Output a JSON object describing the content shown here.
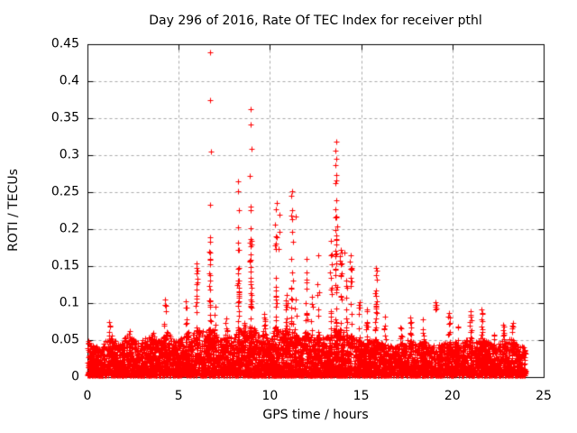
{
  "title": "Day 296 of 2016, Rate Of TEC Index for receiver pthl",
  "x_axis_label": "GPS time / hours",
  "y_axis_label": "ROTI / TECUs",
  "colors": {
    "marker": "#ff0000",
    "grid": "#a8a8a8",
    "frame": "#000000",
    "background": "#ffffff",
    "text": "#000000"
  },
  "chart_data": {
    "type": "scatter",
    "title": "Day 296 of 2016, Rate Of TEC Index for receiver pthl",
    "xlabel": "GPS time / hours",
    "ylabel": "ROTI / TECUs",
    "xlim": [
      0,
      25
    ],
    "ylim": [
      0,
      0.45
    ],
    "xticks": {
      "values": [
        0,
        5,
        10,
        15,
        20,
        25
      ],
      "labels": [
        "0",
        "5",
        "10",
        "15",
        "20",
        "25"
      ]
    },
    "yticks": {
      "values": [
        0,
        0.05,
        0.1,
        0.15,
        0.2,
        0.25,
        0.3,
        0.35,
        0.4,
        0.45
      ],
      "labels": [
        "0",
        "0.05",
        "0.1",
        "0.15",
        "0.2",
        "0.25",
        "0.3",
        "0.35",
        "0.4",
        "0.45"
      ]
    },
    "grid": {
      "style": "dashed",
      "color": "#a8a8a8",
      "on": true
    },
    "legend": {
      "visible": false
    },
    "marker": {
      "shape": "plus",
      "color": "#ff0000",
      "size": 7
    },
    "data_time_range_hours": [
      0,
      24
    ],
    "baseline_band": {
      "n": 6500,
      "v_min": 0.002,
      "envelope": [
        [
          0,
          0.05
        ],
        [
          0.3,
          0.042
        ],
        [
          0.7,
          0.038
        ],
        [
          1.0,
          0.048
        ],
        [
          1.3,
          0.055
        ],
        [
          1.7,
          0.042
        ],
        [
          2.1,
          0.055
        ],
        [
          2.4,
          0.052
        ],
        [
          2.8,
          0.045
        ],
        [
          3.2,
          0.052
        ],
        [
          3.6,
          0.055
        ],
        [
          4.0,
          0.048
        ],
        [
          4.3,
          0.062
        ],
        [
          4.7,
          0.05
        ],
        [
          5.0,
          0.048
        ],
        [
          5.4,
          0.06
        ],
        [
          5.8,
          0.06
        ],
        [
          6.1,
          0.062
        ],
        [
          6.5,
          0.06
        ],
        [
          6.8,
          0.065
        ],
        [
          7.1,
          0.055
        ],
        [
          7.4,
          0.05
        ],
        [
          7.7,
          0.055
        ],
        [
          8.0,
          0.05
        ],
        [
          8.3,
          0.065
        ],
        [
          8.7,
          0.06
        ],
        [
          9.0,
          0.07
        ],
        [
          9.4,
          0.055
        ],
        [
          9.7,
          0.06
        ],
        [
          10.0,
          0.05
        ],
        [
          10.3,
          0.065
        ],
        [
          10.7,
          0.06
        ],
        [
          11.0,
          0.065
        ],
        [
          11.3,
          0.06
        ],
        [
          11.6,
          0.05
        ],
        [
          12.0,
          0.06
        ],
        [
          12.4,
          0.05
        ],
        [
          12.7,
          0.055
        ],
        [
          13.0,
          0.05
        ],
        [
          13.4,
          0.06
        ],
        [
          13.7,
          0.065
        ],
        [
          14.0,
          0.06
        ],
        [
          14.4,
          0.055
        ],
        [
          14.8,
          0.05
        ],
        [
          15.2,
          0.045
        ],
        [
          15.6,
          0.05
        ],
        [
          16.0,
          0.045
        ],
        [
          16.4,
          0.042
        ],
        [
          16.8,
          0.04
        ],
        [
          17.2,
          0.045
        ],
        [
          17.6,
          0.05
        ],
        [
          18.0,
          0.042
        ],
        [
          18.4,
          0.048
        ],
        [
          18.8,
          0.04
        ],
        [
          19.2,
          0.042
        ],
        [
          19.6,
          0.045
        ],
        [
          20.0,
          0.048
        ],
        [
          20.4,
          0.042
        ],
        [
          20.8,
          0.05
        ],
        [
          21.2,
          0.045
        ],
        [
          21.6,
          0.052
        ],
        [
          22.0,
          0.045
        ],
        [
          22.4,
          0.042
        ],
        [
          22.8,
          0.048
        ],
        [
          23.2,
          0.05
        ],
        [
          23.6,
          0.042
        ],
        [
          24.0,
          0.038
        ]
      ]
    },
    "spike_columns": [
      [
        1.2,
        0.068,
        8
      ],
      [
        2.3,
        0.068,
        8
      ],
      [
        3.6,
        0.062,
        6
      ],
      [
        4.25,
        0.098,
        10
      ],
      [
        5.4,
        0.098,
        10
      ],
      [
        6.0,
        0.148,
        14
      ],
      [
        6.7,
        0.19,
        26
      ],
      [
        7.0,
        0.088,
        8
      ],
      [
        7.6,
        0.078,
        10
      ],
      [
        8.27,
        0.175,
        20
      ],
      [
        8.6,
        0.09,
        14
      ],
      [
        8.95,
        0.195,
        28
      ],
      [
        9.7,
        0.082,
        10
      ],
      [
        10.35,
        0.22,
        18
      ],
      [
        10.9,
        0.108,
        16
      ],
      [
        11.2,
        0.195,
        18
      ],
      [
        11.4,
        0.12,
        8
      ],
      [
        12.0,
        0.155,
        12
      ],
      [
        12.3,
        0.1,
        8
      ],
      [
        12.65,
        0.125,
        10
      ],
      [
        13.35,
        0.185,
        18
      ],
      [
        13.62,
        0.225,
        36
      ],
      [
        13.9,
        0.165,
        14
      ],
      [
        14.2,
        0.125,
        10
      ],
      [
        14.45,
        0.155,
        12
      ],
      [
        14.9,
        0.098,
        10
      ],
      [
        15.3,
        0.09,
        10
      ],
      [
        15.8,
        0.145,
        18
      ],
      [
        16.3,
        0.08,
        8
      ],
      [
        17.2,
        0.07,
        8
      ],
      [
        17.7,
        0.078,
        10
      ],
      [
        18.4,
        0.075,
        8
      ],
      [
        19.8,
        0.084,
        12
      ],
      [
        20.3,
        0.07,
        8
      ],
      [
        21.0,
        0.086,
        14
      ],
      [
        21.6,
        0.088,
        16
      ],
      [
        22.3,
        0.065,
        8
      ],
      [
        22.8,
        0.07,
        10
      ],
      [
        23.3,
        0.071,
        10
      ]
    ],
    "outliers": [
      [
        6.72,
        0.439
      ],
      [
        6.72,
        0.375
      ],
      [
        6.75,
        0.305
      ],
      [
        6.7,
        0.233
      ],
      [
        6.7,
        0.183
      ],
      [
        6.72,
        0.152
      ],
      [
        6.7,
        0.131
      ],
      [
        6.72,
        0.118
      ],
      [
        6.68,
        0.104
      ],
      [
        6.74,
        0.095
      ],
      [
        8.95,
        0.362
      ],
      [
        8.92,
        0.341
      ],
      [
        8.97,
        0.309
      ],
      [
        8.9,
        0.272
      ],
      [
        8.93,
        0.231
      ],
      [
        8.95,
        0.226
      ],
      [
        8.95,
        0.201
      ],
      [
        8.97,
        0.184
      ],
      [
        8.95,
        0.159
      ],
      [
        8.93,
        0.134
      ],
      [
        8.95,
        0.129
      ],
      [
        8.97,
        0.111
      ],
      [
        8.95,
        0.099
      ],
      [
        8.27,
        0.265
      ],
      [
        8.25,
        0.251
      ],
      [
        8.3,
        0.226
      ],
      [
        8.25,
        0.202
      ],
      [
        8.27,
        0.182
      ],
      [
        8.25,
        0.172
      ],
      [
        8.27,
        0.146
      ],
      [
        8.25,
        0.13
      ],
      [
        8.28,
        0.115
      ],
      [
        8.25,
        0.101
      ],
      [
        13.62,
        0.318
      ],
      [
        13.6,
        0.306
      ],
      [
        13.64,
        0.295
      ],
      [
        13.6,
        0.287
      ],
      [
        13.62,
        0.273
      ],
      [
        13.65,
        0.266
      ],
      [
        13.6,
        0.262
      ],
      [
        13.62,
        0.239
      ],
      [
        13.6,
        0.227
      ],
      [
        13.64,
        0.217
      ],
      [
        13.6,
        0.199
      ],
      [
        13.62,
        0.185
      ],
      [
        11.2,
        0.251
      ],
      [
        11.17,
        0.245
      ],
      [
        11.2,
        0.226
      ],
      [
        11.15,
        0.218
      ],
      [
        11.22,
        0.213
      ],
      [
        11.2,
        0.196
      ],
      [
        10.4,
        0.235
      ],
      [
        10.35,
        0.227
      ],
      [
        10.3,
        0.206
      ],
      [
        10.35,
        0.19
      ],
      [
        10.3,
        0.178
      ],
      [
        10.45,
        0.173
      ],
      [
        10.5,
        0.22
      ],
      [
        10.52,
        0.196
      ],
      [
        11.4,
        0.217
      ],
      [
        12.65,
        0.165
      ],
      [
        12.6,
        0.126
      ],
      [
        12.0,
        0.16
      ],
      [
        12.02,
        0.141
      ],
      [
        13.9,
        0.172
      ],
      [
        13.95,
        0.168
      ],
      [
        13.85,
        0.163
      ],
      [
        14.1,
        0.168
      ],
      [
        14.45,
        0.165
      ],
      [
        14.4,
        0.156
      ],
      [
        14.45,
        0.146
      ],
      [
        14.42,
        0.134
      ],
      [
        15.8,
        0.148
      ],
      [
        15.85,
        0.144
      ],
      [
        15.8,
        0.138
      ],
      [
        15.85,
        0.132
      ],
      [
        15.8,
        0.117
      ],
      [
        15.82,
        0.11
      ],
      [
        15.85,
        0.102
      ],
      [
        15.8,
        0.095
      ],
      [
        15.83,
        0.088
      ],
      [
        19.07,
        0.101
      ],
      [
        19.1,
        0.098
      ],
      [
        19.05,
        0.097
      ],
      [
        19.08,
        0.095
      ],
      [
        19.1,
        0.093
      ],
      [
        19.06,
        0.092
      ],
      [
        6.0,
        0.154
      ],
      [
        5.98,
        0.148
      ],
      [
        6.0,
        0.14
      ],
      [
        6.02,
        0.128
      ],
      [
        5.98,
        0.118
      ],
      [
        6.0,
        0.106
      ],
      [
        5.4,
        0.103
      ],
      [
        5.42,
        0.094
      ],
      [
        4.25,
        0.105
      ],
      [
        4.27,
        0.097
      ],
      [
        1.2,
        0.075
      ],
      [
        1.25,
        0.07
      ],
      [
        7.0,
        0.095
      ],
      [
        7.6,
        0.079
      ],
      [
        9.7,
        0.085
      ],
      [
        9.72,
        0.078
      ],
      [
        10.9,
        0.111
      ],
      [
        10.95,
        0.1
      ],
      [
        10.88,
        0.091
      ],
      [
        17.7,
        0.081
      ],
      [
        17.72,
        0.074
      ],
      [
        18.4,
        0.078
      ],
      [
        19.8,
        0.086
      ],
      [
        19.85,
        0.08
      ],
      [
        19.8,
        0.072
      ],
      [
        21.0,
        0.089
      ],
      [
        21.02,
        0.082
      ],
      [
        21.05,
        0.077
      ],
      [
        21.6,
        0.091
      ],
      [
        21.62,
        0.085
      ],
      [
        22.8,
        0.071
      ],
      [
        23.3,
        0.073
      ],
      [
        23.32,
        0.068
      ],
      [
        14.2,
        0.131
      ],
      [
        14.22,
        0.121
      ],
      [
        12.3,
        0.108
      ],
      [
        16.3,
        0.082
      ],
      [
        15.3,
        0.092
      ],
      [
        14.9,
        0.101
      ],
      [
        14.92,
        0.094
      ]
    ]
  }
}
